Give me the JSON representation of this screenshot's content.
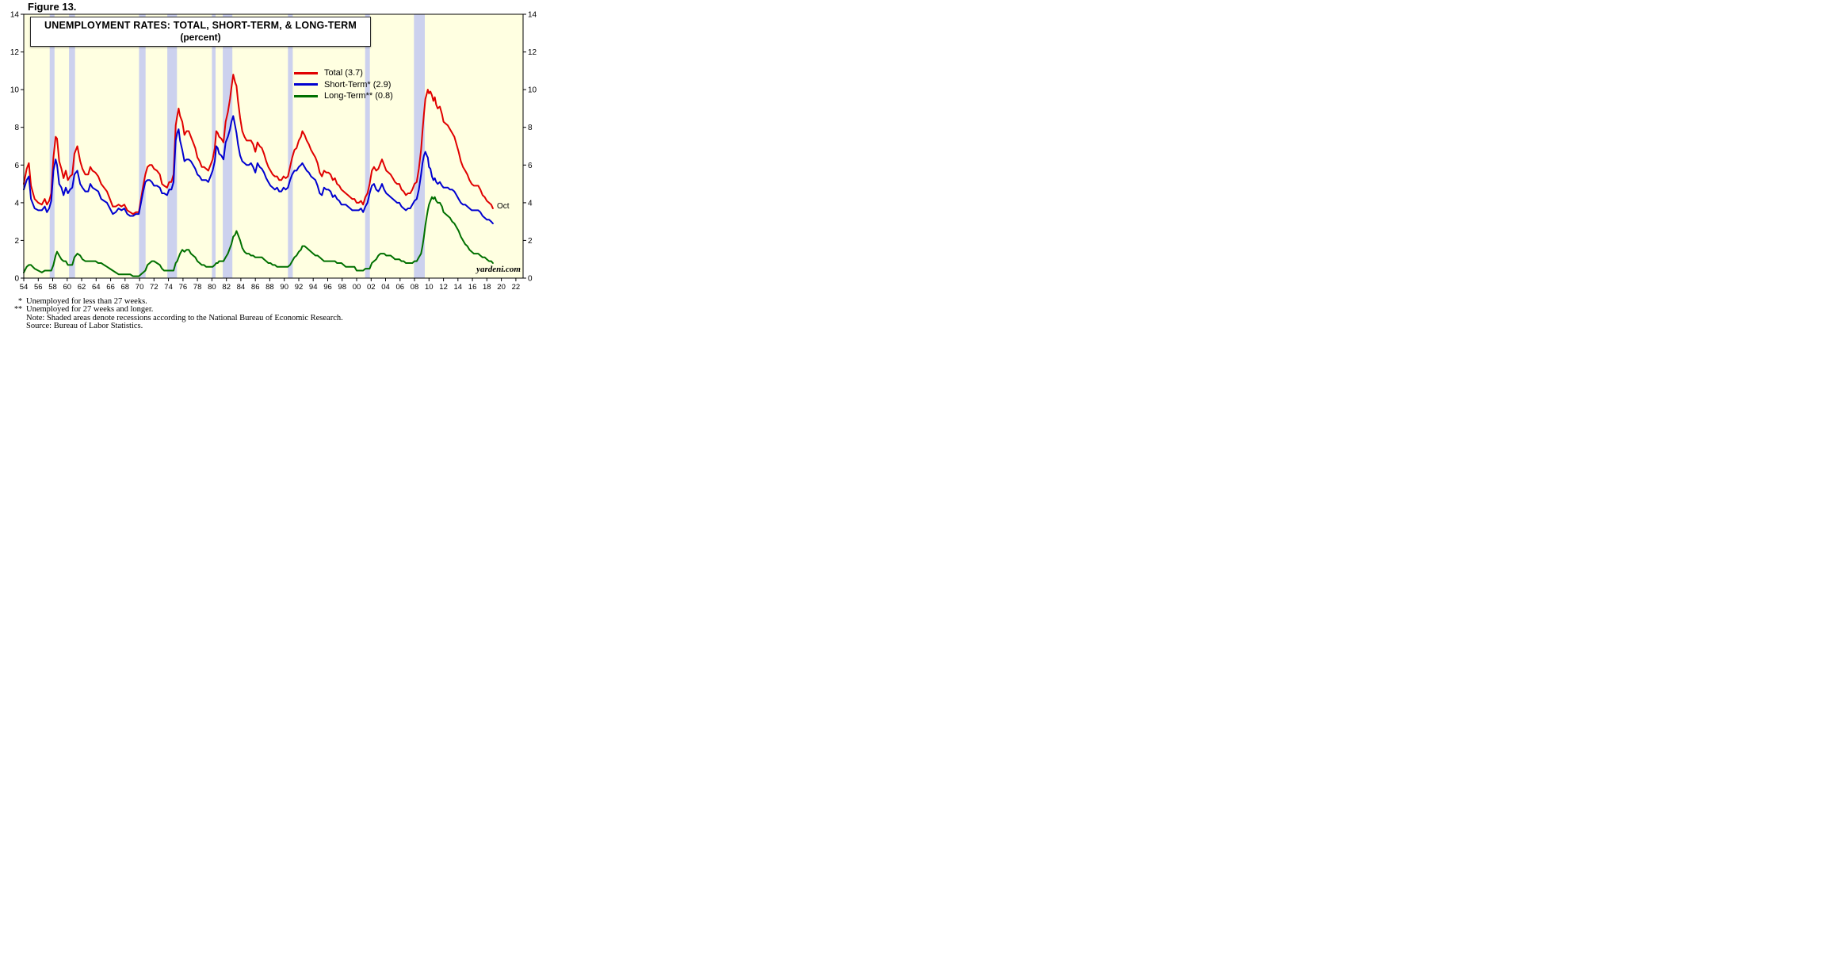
{
  "figure_label": "Figure 13.",
  "chart_data": {
    "type": "line",
    "title": "UNEMPLOYMENT RATES: TOTAL, SHORT-TERM, & LONG-TERM",
    "subtitle": "(percent)",
    "xlabel": "",
    "ylabel": "",
    "units": "percent",
    "grid": false,
    "legend_position": "inside-top-center",
    "plot_bg": "#ffffe1",
    "recession_band_color": "#ccd1ee",
    "ylim": [
      0,
      14
    ],
    "ytick_step": 2,
    "xlim": [
      1954,
      2023
    ],
    "xticks": [
      1954,
      1956,
      1958,
      1960,
      1962,
      1964,
      1966,
      1968,
      1970,
      1972,
      1974,
      1976,
      1978,
      1980,
      1982,
      1984,
      1986,
      1988,
      1990,
      1992,
      1994,
      1996,
      1998,
      2000,
      2002,
      2004,
      2006,
      2008,
      2010,
      2012,
      2014,
      2016,
      2018,
      2020,
      2022
    ],
    "xtick_labels": [
      "54",
      "56",
      "58",
      "60",
      "62",
      "64",
      "66",
      "68",
      "70",
      "72",
      "74",
      "76",
      "78",
      "80",
      "82",
      "84",
      "86",
      "88",
      "90",
      "92",
      "94",
      "96",
      "98",
      "00",
      "02",
      "04",
      "06",
      "08",
      "10",
      "12",
      "14",
      "16",
      "18",
      "20",
      "22"
    ],
    "last_point_label": "Oct",
    "watermark": "yardeni.com",
    "recessions": [
      [
        1957.58,
        1958.25
      ],
      [
        1960.25,
        1961.08
      ],
      [
        1969.92,
        1970.83
      ],
      [
        1973.83,
        1975.17
      ],
      [
        1980.0,
        1980.5
      ],
      [
        1981.5,
        1982.83
      ],
      [
        1990.5,
        1991.17
      ],
      [
        2001.17,
        2001.83
      ],
      [
        2007.92,
        2009.42
      ]
    ],
    "x": [
      1954.0,
      1954.4,
      1954.7,
      1955.0,
      1955.5,
      1956.0,
      1956.5,
      1956.9,
      1957.2,
      1957.5,
      1957.8,
      1958.1,
      1958.4,
      1958.6,
      1958.9,
      1959.2,
      1959.5,
      1959.8,
      1960.1,
      1960.4,
      1960.7,
      1961.0,
      1961.4,
      1961.8,
      1962.1,
      1962.5,
      1962.9,
      1963.2,
      1963.5,
      1963.9,
      1964.3,
      1964.7,
      1965.1,
      1965.5,
      1965.9,
      1966.3,
      1966.7,
      1967.1,
      1967.5,
      1967.9,
      1968.3,
      1968.7,
      1969.1,
      1969.5,
      1969.9,
      1970.2,
      1970.5,
      1970.8,
      1971.1,
      1971.4,
      1971.7,
      1972.0,
      1972.4,
      1972.8,
      1973.1,
      1973.4,
      1973.8,
      1974.1,
      1974.4,
      1974.7,
      1975.0,
      1975.2,
      1975.4,
      1975.6,
      1975.9,
      1976.2,
      1976.5,
      1976.8,
      1977.1,
      1977.4,
      1977.7,
      1978.0,
      1978.3,
      1978.6,
      1978.9,
      1979.2,
      1979.5,
      1979.8,
      1980.1,
      1980.4,
      1980.6,
      1980.8,
      1981.0,
      1981.3,
      1981.6,
      1981.9,
      1982.2,
      1982.5,
      1982.7,
      1982.95,
      1983.2,
      1983.4,
      1983.6,
      1983.9,
      1984.2,
      1984.5,
      1984.8,
      1985.1,
      1985.4,
      1985.7,
      1986.0,
      1986.3,
      1986.6,
      1986.9,
      1987.2,
      1987.5,
      1987.8,
      1988.1,
      1988.4,
      1988.7,
      1989.0,
      1989.3,
      1989.6,
      1989.9,
      1990.2,
      1990.5,
      1990.8,
      1991.1,
      1991.4,
      1991.7,
      1992.0,
      1992.3,
      1992.5,
      1992.8,
      1993.1,
      1993.4,
      1993.7,
      1994.0,
      1994.3,
      1994.6,
      1994.9,
      1995.2,
      1995.5,
      1995.8,
      1996.1,
      1996.4,
      1996.7,
      1997.0,
      1997.3,
      1997.6,
      1997.9,
      1998.2,
      1998.5,
      1998.8,
      1999.1,
      1999.4,
      1999.7,
      2000.0,
      2000.3,
      2000.6,
      2000.9,
      2001.2,
      2001.5,
      2001.8,
      2002.1,
      2002.4,
      2002.7,
      2003.0,
      2003.3,
      2003.5,
      2003.8,
      2004.1,
      2004.4,
      2004.7,
      2005.0,
      2005.3,
      2005.6,
      2005.9,
      2006.2,
      2006.5,
      2006.8,
      2007.1,
      2007.4,
      2007.7,
      2008.0,
      2008.3,
      2008.6,
      2008.9,
      2009.1,
      2009.3,
      2009.5,
      2009.7,
      2009.83,
      2010.0,
      2010.2,
      2010.4,
      2010.6,
      2010.8,
      2011.0,
      2011.2,
      2011.5,
      2011.8,
      2012.0,
      2012.3,
      2012.6,
      2012.9,
      2013.2,
      2013.5,
      2013.8,
      2014.1,
      2014.4,
      2014.7,
      2015.0,
      2015.3,
      2015.6,
      2015.9,
      2016.2,
      2016.5,
      2016.8,
      2017.1,
      2017.4,
      2017.7,
      2018.0,
      2018.3,
      2018.6,
      2018.83
    ],
    "series": [
      {
        "name": "Total",
        "legend": "Total (3.7)",
        "color": "#e00000",
        "last_value": 3.7,
        "values": [
          5.0,
          5.8,
          6.1,
          4.9,
          4.2,
          4.0,
          3.9,
          4.2,
          3.9,
          4.1,
          4.5,
          6.4,
          7.5,
          7.4,
          6.2,
          5.8,
          5.3,
          5.7,
          5.2,
          5.4,
          5.5,
          6.6,
          7.0,
          6.2,
          5.8,
          5.5,
          5.5,
          5.9,
          5.7,
          5.6,
          5.4,
          5.0,
          4.8,
          4.6,
          4.2,
          3.8,
          3.8,
          3.9,
          3.8,
          3.9,
          3.6,
          3.5,
          3.4,
          3.5,
          3.5,
          4.2,
          4.9,
          5.5,
          5.9,
          6.0,
          6.0,
          5.8,
          5.7,
          5.5,
          5.0,
          4.9,
          4.8,
          5.1,
          5.1,
          5.5,
          8.1,
          8.6,
          9.0,
          8.6,
          8.3,
          7.6,
          7.8,
          7.8,
          7.5,
          7.2,
          6.9,
          6.4,
          6.2,
          5.9,
          5.9,
          5.8,
          5.7,
          6.0,
          6.3,
          6.9,
          7.8,
          7.7,
          7.5,
          7.4,
          7.2,
          8.3,
          8.8,
          9.5,
          10.1,
          10.8,
          10.4,
          10.2,
          9.4,
          8.5,
          7.8,
          7.5,
          7.3,
          7.3,
          7.3,
          7.1,
          6.7,
          7.2,
          7.0,
          6.9,
          6.6,
          6.2,
          5.9,
          5.7,
          5.5,
          5.4,
          5.4,
          5.2,
          5.2,
          5.4,
          5.3,
          5.4,
          5.9,
          6.4,
          6.8,
          6.9,
          7.3,
          7.5,
          7.8,
          7.6,
          7.3,
          7.1,
          6.8,
          6.6,
          6.4,
          6.1,
          5.6,
          5.4,
          5.7,
          5.6,
          5.6,
          5.5,
          5.2,
          5.3,
          5.0,
          4.9,
          4.7,
          4.6,
          4.5,
          4.4,
          4.3,
          4.2,
          4.2,
          4.0,
          4.0,
          4.1,
          3.9,
          4.3,
          4.5,
          5.0,
          5.7,
          5.9,
          5.7,
          5.8,
          6.1,
          6.3,
          6.0,
          5.7,
          5.6,
          5.5,
          5.3,
          5.1,
          5.0,
          5.0,
          4.7,
          4.6,
          4.4,
          4.5,
          4.5,
          4.7,
          5.0,
          5.1,
          5.8,
          6.8,
          7.8,
          8.7,
          9.5,
          9.8,
          10.0,
          9.8,
          9.9,
          9.7,
          9.4,
          9.6,
          9.2,
          9.0,
          9.1,
          8.7,
          8.3,
          8.2,
          8.1,
          7.9,
          7.7,
          7.5,
          7.1,
          6.7,
          6.2,
          5.9,
          5.7,
          5.5,
          5.2,
          5.0,
          4.9,
          4.9,
          4.9,
          4.7,
          4.4,
          4.3,
          4.1,
          4.0,
          3.9,
          3.7
        ]
      },
      {
        "name": "Short-Term",
        "legend": "Short-Term* (2.9)",
        "color": "#0000d0",
        "last_value": 2.9,
        "values": [
          4.7,
          5.2,
          5.4,
          4.2,
          3.7,
          3.6,
          3.6,
          3.8,
          3.5,
          3.7,
          4.1,
          5.7,
          6.3,
          6.0,
          5.0,
          4.8,
          4.4,
          4.8,
          4.5,
          4.7,
          4.8,
          5.5,
          5.7,
          5.0,
          4.8,
          4.6,
          4.6,
          5.0,
          4.8,
          4.7,
          4.6,
          4.2,
          4.1,
          4.0,
          3.7,
          3.4,
          3.5,
          3.7,
          3.6,
          3.7,
          3.4,
          3.3,
          3.3,
          3.4,
          3.4,
          4.0,
          4.6,
          5.1,
          5.2,
          5.2,
          5.1,
          4.9,
          4.9,
          4.8,
          4.5,
          4.5,
          4.4,
          4.7,
          4.7,
          5.1,
          7.3,
          7.7,
          7.9,
          7.3,
          6.8,
          6.2,
          6.3,
          6.3,
          6.2,
          6.0,
          5.8,
          5.5,
          5.4,
          5.2,
          5.2,
          5.2,
          5.1,
          5.4,
          5.7,
          6.2,
          7.0,
          6.9,
          6.6,
          6.5,
          6.3,
          7.2,
          7.5,
          7.9,
          8.3,
          8.6,
          8.1,
          7.7,
          7.1,
          6.5,
          6.2,
          6.1,
          6.0,
          6.0,
          6.1,
          5.9,
          5.6,
          6.1,
          5.9,
          5.8,
          5.6,
          5.3,
          5.1,
          4.9,
          4.8,
          4.7,
          4.8,
          4.6,
          4.6,
          4.8,
          4.7,
          4.8,
          5.2,
          5.5,
          5.7,
          5.7,
          5.9,
          6.0,
          6.1,
          5.9,
          5.7,
          5.6,
          5.4,
          5.3,
          5.2,
          4.9,
          4.5,
          4.4,
          4.8,
          4.7,
          4.7,
          4.6,
          4.3,
          4.4,
          4.2,
          4.1,
          3.9,
          3.9,
          3.9,
          3.8,
          3.7,
          3.6,
          3.6,
          3.6,
          3.6,
          3.7,
          3.5,
          3.8,
          4.0,
          4.5,
          4.9,
          5.0,
          4.7,
          4.6,
          4.8,
          5.0,
          4.7,
          4.5,
          4.4,
          4.3,
          4.2,
          4.1,
          4.0,
          4.0,
          3.8,
          3.7,
          3.6,
          3.7,
          3.7,
          3.9,
          4.1,
          4.2,
          4.7,
          5.5,
          6.1,
          6.5,
          6.7,
          6.5,
          6.4,
          5.9,
          5.8,
          5.4,
          5.2,
          5.3,
          5.1,
          5.0,
          5.1,
          4.9,
          4.8,
          4.8,
          4.8,
          4.7,
          4.7,
          4.6,
          4.4,
          4.2,
          4.0,
          3.9,
          3.9,
          3.8,
          3.7,
          3.6,
          3.6,
          3.6,
          3.6,
          3.5,
          3.3,
          3.2,
          3.1,
          3.1,
          3.0,
          2.9
        ]
      },
      {
        "name": "Long-Term",
        "legend": "Long-Term** (0.8)",
        "color": "#007000",
        "last_value": 0.8,
        "values": [
          0.3,
          0.6,
          0.7,
          0.7,
          0.5,
          0.4,
          0.3,
          0.4,
          0.4,
          0.4,
          0.4,
          0.7,
          1.2,
          1.4,
          1.2,
          1.0,
          0.9,
          0.9,
          0.7,
          0.7,
          0.7,
          1.1,
          1.3,
          1.2,
          1.0,
          0.9,
          0.9,
          0.9,
          0.9,
          0.9,
          0.8,
          0.8,
          0.7,
          0.6,
          0.5,
          0.4,
          0.3,
          0.2,
          0.2,
          0.2,
          0.2,
          0.2,
          0.1,
          0.1,
          0.1,
          0.2,
          0.3,
          0.4,
          0.7,
          0.8,
          0.9,
          0.9,
          0.8,
          0.7,
          0.5,
          0.4,
          0.4,
          0.4,
          0.4,
          0.4,
          0.8,
          0.9,
          1.1,
          1.3,
          1.5,
          1.4,
          1.5,
          1.5,
          1.3,
          1.2,
          1.1,
          0.9,
          0.8,
          0.7,
          0.7,
          0.6,
          0.6,
          0.6,
          0.6,
          0.7,
          0.8,
          0.8,
          0.9,
          0.9,
          0.9,
          1.1,
          1.3,
          1.6,
          1.8,
          2.2,
          2.3,
          2.5,
          2.3,
          2.0,
          1.6,
          1.4,
          1.3,
          1.3,
          1.2,
          1.2,
          1.1,
          1.1,
          1.1,
          1.1,
          1.0,
          0.9,
          0.8,
          0.8,
          0.7,
          0.7,
          0.6,
          0.6,
          0.6,
          0.6,
          0.6,
          0.6,
          0.7,
          0.9,
          1.1,
          1.2,
          1.4,
          1.5,
          1.7,
          1.7,
          1.6,
          1.5,
          1.4,
          1.3,
          1.2,
          1.2,
          1.1,
          1.0,
          0.9,
          0.9,
          0.9,
          0.9,
          0.9,
          0.9,
          0.8,
          0.8,
          0.8,
          0.7,
          0.6,
          0.6,
          0.6,
          0.6,
          0.6,
          0.4,
          0.4,
          0.4,
          0.4,
          0.5,
          0.5,
          0.5,
          0.8,
          0.9,
          1.0,
          1.2,
          1.3,
          1.3,
          1.3,
          1.2,
          1.2,
          1.2,
          1.1,
          1.0,
          1.0,
          1.0,
          0.9,
          0.9,
          0.8,
          0.8,
          0.8,
          0.8,
          0.9,
          0.9,
          1.1,
          1.3,
          1.7,
          2.2,
          2.8,
          3.3,
          3.6,
          3.9,
          4.1,
          4.3,
          4.2,
          4.3,
          4.1,
          4.0,
          4.0,
          3.8,
          3.5,
          3.4,
          3.3,
          3.2,
          3.0,
          2.9,
          2.7,
          2.5,
          2.2,
          2.0,
          1.8,
          1.7,
          1.5,
          1.4,
          1.3,
          1.3,
          1.3,
          1.2,
          1.1,
          1.1,
          1.0,
          0.9,
          0.9,
          0.8
        ]
      }
    ]
  },
  "footnotes": [
    {
      "marker": "*",
      "text": "Unemployed for less than 27 weeks."
    },
    {
      "marker": "**",
      "text": "Unemployed for 27 weeks and longer."
    },
    {
      "marker": "",
      "text": "Note: Shaded areas denote recessions according to the National Bureau of Economic Research."
    },
    {
      "marker": "",
      "text": "Source: Bureau of Labor Statistics."
    }
  ]
}
